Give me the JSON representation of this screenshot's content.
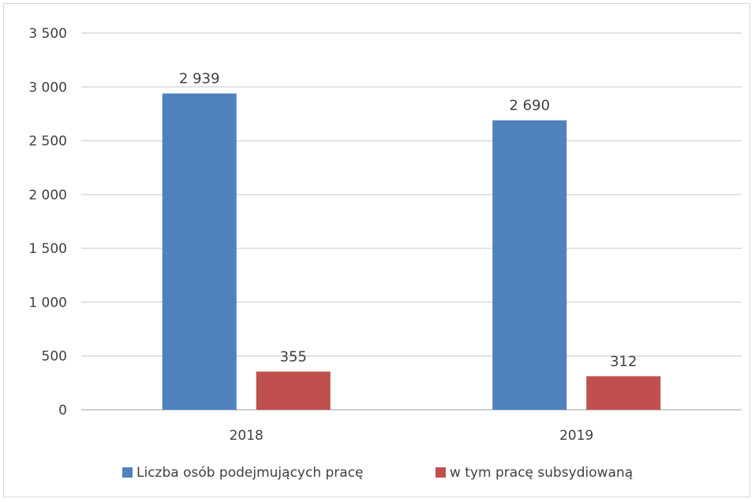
{
  "chart_data": {
    "type": "bar",
    "categories": [
      "2018",
      "2019"
    ],
    "series": [
      {
        "name": "Liczba osób podejmujących pracę",
        "values": [
          2939,
          2690
        ],
        "labels": [
          "2 939",
          "2 690"
        ],
        "color": "#4f81bd"
      },
      {
        "name": "w tym pracę subsydiowaną",
        "values": [
          355,
          312
        ],
        "labels": [
          "355",
          "312"
        ],
        "color": "#c0504d"
      }
    ],
    "ylim": [
      0,
      3500
    ],
    "yticks": [
      0,
      500,
      1000,
      1500,
      2000,
      2500,
      3000,
      3500
    ],
    "ytick_labels": [
      "0",
      "500",
      "1 000",
      "1 500",
      "2 000",
      "2 500",
      "3 000",
      "3 500"
    ],
    "grid": true,
    "legend_position": "bottom",
    "gridline_color": "#d9d9d9",
    "axis_color": "#bfbfbf"
  }
}
